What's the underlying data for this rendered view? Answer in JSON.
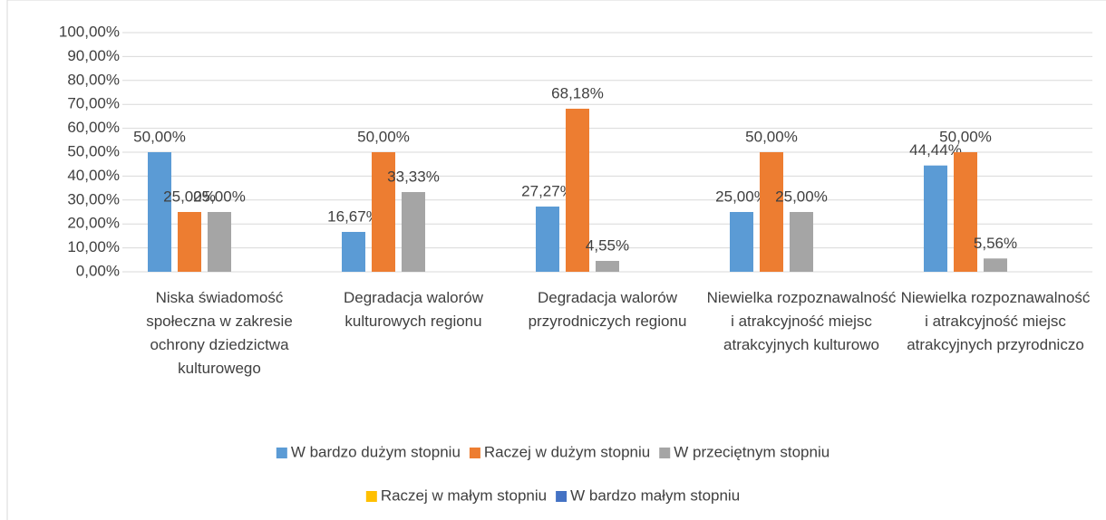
{
  "chart_data": {
    "type": "bar",
    "categories": [
      "Niska świadomość społeczna w zakresie ochrony dziedzictwa kulturowego",
      "Degradacja walorów kulturowych regionu",
      "Degradacja walorów przyrodniczych regionu",
      "Niewielka rozpoznawalność i atrakcyjność miejsc atrakcyjnych kulturowo",
      "Niewielka rozpoznawalność i atrakcyjność miejsc atrakcyjnych przyrodniczo"
    ],
    "series": [
      {
        "name": "W bardzo dużym stopniu",
        "color": "#5b9bd5",
        "values": [
          50,
          16.67,
          27.27,
          25,
          44.44
        ],
        "value_labels": [
          "50,00%",
          "16,67%",
          "27,27%",
          "25,00%",
          "44,44%"
        ]
      },
      {
        "name": "Raczej w dużym stopniu",
        "color": "#ed7d31",
        "values": [
          25,
          50,
          68.18,
          50,
          50
        ],
        "value_labels": [
          "25,00%",
          "50,00%",
          "68,18%",
          "50,00%",
          "50,00%"
        ]
      },
      {
        "name": "W przeciętnym stopniu",
        "color": "#a5a5a5",
        "values": [
          25,
          33.33,
          4.55,
          25,
          5.56
        ],
        "value_labels": [
          "25,00%",
          "33,33%",
          "4,55%",
          "25,00%",
          "5,56%"
        ]
      },
      {
        "name": "Raczej w małym stopniu",
        "color": "#ffc000",
        "values": [
          0,
          0,
          0,
          0,
          0
        ]
      },
      {
        "name": "W bardzo małym stopniu",
        "color": "#4472c4",
        "values": [
          0,
          0,
          0,
          0,
          0
        ]
      }
    ],
    "ylim": [
      0,
      100
    ],
    "yticks": [
      {
        "value": 0,
        "label": "0,00%"
      },
      {
        "value": 10,
        "label": "10,00%"
      },
      {
        "value": 20,
        "label": "20,00%"
      },
      {
        "value": 30,
        "label": "30,00%"
      },
      {
        "value": 40,
        "label": "40,00%"
      },
      {
        "value": 50,
        "label": "50,00%"
      },
      {
        "value": 60,
        "label": "60,00%"
      },
      {
        "value": 70,
        "label": "70,00%"
      },
      {
        "value": 80,
        "label": "80,00%"
      },
      {
        "value": 90,
        "label": "90,00%"
      },
      {
        "value": 100,
        "label": "100,00%"
      }
    ],
    "grid": true,
    "legend": "bottom"
  }
}
